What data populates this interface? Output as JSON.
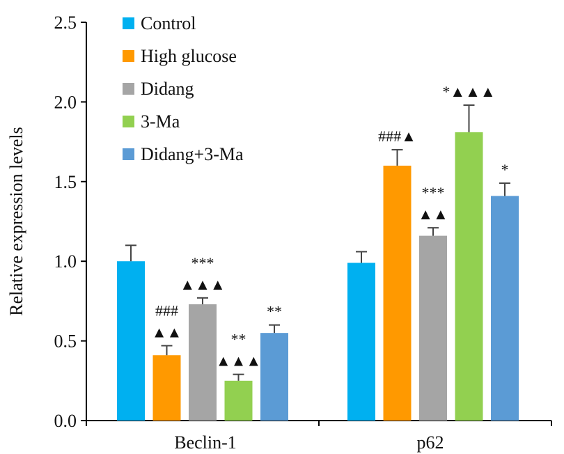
{
  "chart_data": {
    "type": "bar",
    "ylabel": "Relative expression levels",
    "xlabel": "",
    "title": "",
    "ylim": [
      0,
      2.5
    ],
    "yticks": [
      "0.0",
      "0.5",
      "1.0",
      "1.5",
      "2.0",
      "2.5"
    ],
    "categories": [
      "Beclin-1",
      "p62"
    ],
    "legend_position": "top-left",
    "series": [
      {
        "name": "Control",
        "color": "#00B0F0",
        "values": [
          1.0,
          0.99
        ],
        "errors": [
          0.1,
          0.07
        ],
        "annotations": [
          [],
          []
        ]
      },
      {
        "name": "High glucose",
        "color": "#FF9900",
        "values": [
          0.41,
          1.6
        ],
        "errors": [
          0.06,
          0.1
        ],
        "annotations": [
          [
            "###",
            "▲▲"
          ],
          [
            "###▲"
          ]
        ]
      },
      {
        "name": "Didang",
        "color": "#A5A5A5",
        "values": [
          0.73,
          1.16
        ],
        "errors": [
          0.04,
          0.05
        ],
        "annotations": [
          [
            "***",
            "▲▲▲"
          ],
          [
            "***",
            "▲▲"
          ]
        ]
      },
      {
        "name": "3-Ma",
        "color": "#92D050",
        "values": [
          0.25,
          1.81
        ],
        "errors": [
          0.04,
          0.17
        ],
        "annotations": [
          [
            "**",
            "▲▲▲"
          ],
          [
            "*▲▲▲"
          ]
        ]
      },
      {
        "name": "Didang+3-Ma",
        "color": "#5B9BD5",
        "values": [
          0.55,
          1.41
        ],
        "errors": [
          0.05,
          0.08
        ],
        "annotations": [
          [
            "**"
          ],
          [
            "*"
          ]
        ]
      }
    ]
  }
}
